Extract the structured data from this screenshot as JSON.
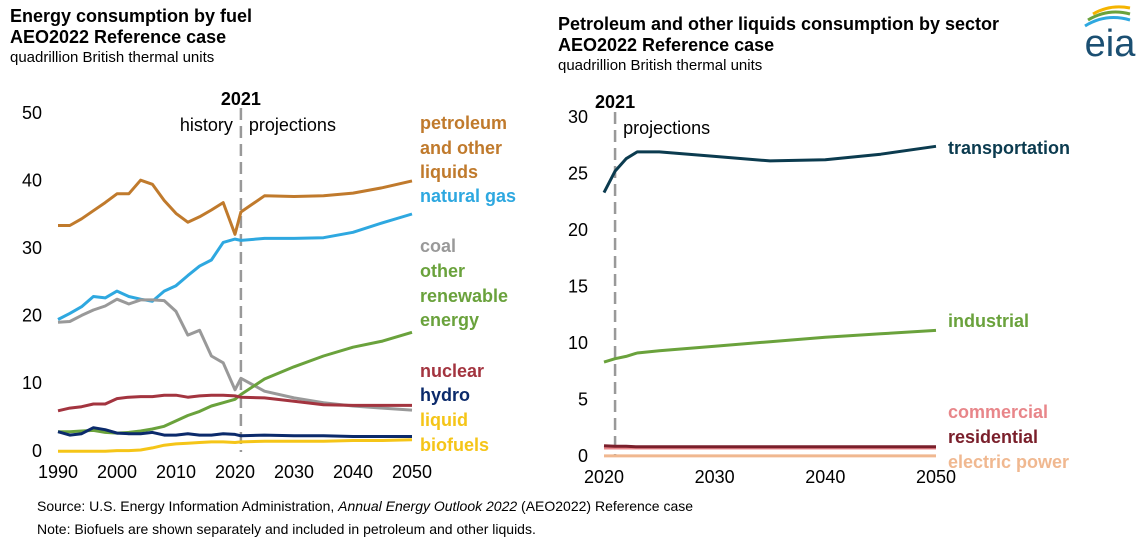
{
  "chart_data": [
    {
      "type": "line",
      "title": "Energy consumption by fuel",
      "subtitle": "AEO2022 Reference case",
      "units": "quadrillion British thermal units",
      "marker_year": 2021,
      "history_label": "history",
      "projections_label": "projections",
      "x": [
        1990,
        1992,
        1994,
        1996,
        1998,
        2000,
        2002,
        2004,
        2006,
        2008,
        2010,
        2012,
        2014,
        2016,
        2018,
        2020,
        2021,
        2025,
        2030,
        2035,
        2040,
        2045,
        2050
      ],
      "xlim": [
        1990,
        2050
      ],
      "xticks": [
        1990,
        2000,
        2010,
        2020,
        2030,
        2040,
        2050
      ],
      "ylim": [
        0,
        50
      ],
      "yticks": [
        0,
        10,
        20,
        30,
        40,
        50
      ],
      "grid": false,
      "series": [
        {
          "name": "petroleum and other liquids",
          "color": "#c07a2c",
          "values": [
            33.5,
            33.5,
            34.5,
            35.7,
            36.9,
            38.2,
            38.2,
            40.2,
            39.6,
            37.2,
            35.3,
            34.0,
            34.8,
            35.8,
            36.9,
            32.2,
            35.5,
            37.9,
            37.8,
            37.9,
            38.3,
            39.1,
            40.1
          ]
        },
        {
          "name": "natural gas",
          "color": "#2ea8e0",
          "values": [
            19.6,
            20.5,
            21.5,
            23.0,
            22.8,
            23.8,
            23.0,
            22.6,
            22.3,
            23.8,
            24.6,
            26.1,
            27.5,
            28.4,
            31.0,
            31.5,
            31.3,
            31.6,
            31.6,
            31.7,
            32.5,
            33.9,
            35.2
          ]
        },
        {
          "name": "coal",
          "color": "#999999",
          "values": [
            19.2,
            19.3,
            20.2,
            21.0,
            21.6,
            22.6,
            21.9,
            22.5,
            22.5,
            22.4,
            20.8,
            17.3,
            18.0,
            14.2,
            13.2,
            9.2,
            10.9,
            9.0,
            8.0,
            7.3,
            6.8,
            6.5,
            6.2
          ]
        },
        {
          "name": "other renewable energy",
          "color": "#6aa23c",
          "values": [
            3.0,
            3.0,
            3.1,
            3.2,
            2.9,
            2.8,
            2.9,
            3.1,
            3.4,
            3.8,
            4.6,
            5.4,
            6.0,
            6.8,
            7.3,
            7.8,
            8.5,
            10.8,
            12.6,
            14.2,
            15.5,
            16.4,
            17.7
          ]
        },
        {
          "name": "nuclear",
          "color": "#a3343f",
          "values": [
            6.1,
            6.5,
            6.7,
            7.1,
            7.1,
            7.9,
            8.1,
            8.2,
            8.2,
            8.4,
            8.4,
            8.1,
            8.3,
            8.4,
            8.4,
            8.3,
            8.1,
            8.0,
            7.5,
            7.0,
            6.9,
            6.9,
            6.9
          ]
        },
        {
          "name": "hydro",
          "color": "#0b2a6b",
          "values": [
            3.0,
            2.5,
            2.7,
            3.6,
            3.3,
            2.8,
            2.7,
            2.7,
            2.9,
            2.5,
            2.5,
            2.7,
            2.5,
            2.5,
            2.7,
            2.6,
            2.4,
            2.5,
            2.4,
            2.4,
            2.3,
            2.3,
            2.3
          ]
        },
        {
          "name": "liquid biofuels",
          "color": "#f5c518",
          "values": [
            0.1,
            0.1,
            0.1,
            0.1,
            0.1,
            0.2,
            0.2,
            0.3,
            0.6,
            1.0,
            1.2,
            1.3,
            1.4,
            1.5,
            1.5,
            1.4,
            1.5,
            1.6,
            1.6,
            1.6,
            1.7,
            1.7,
            1.8
          ]
        }
      ]
    },
    {
      "type": "line",
      "title": "Petroleum and other liquids consumption by sector",
      "subtitle": "AEO2022 Reference case",
      "units": "quadrillion British thermal units",
      "marker_year": 2021,
      "projections_label": "projections",
      "x": [
        2020,
        2021,
        2022,
        2023,
        2025,
        2030,
        2035,
        2040,
        2045,
        2050
      ],
      "xlim": [
        2020,
        2050
      ],
      "xticks": [
        2020,
        2030,
        2040,
        2050
      ],
      "ylim": [
        0,
        30
      ],
      "yticks": [
        0,
        5,
        10,
        15,
        20,
        25,
        30
      ],
      "grid": false,
      "series": [
        {
          "name": "transportation",
          "color": "#0b3b4f",
          "values": [
            23.4,
            25.3,
            26.4,
            27.0,
            27.0,
            26.6,
            26.2,
            26.3,
            26.8,
            27.5
          ]
        },
        {
          "name": "industrial",
          "color": "#6aa23c",
          "values": [
            8.4,
            8.7,
            8.9,
            9.2,
            9.4,
            9.8,
            10.2,
            10.6,
            10.9,
            11.2
          ]
        },
        {
          "name": "commercial",
          "color": "#e8868a",
          "values": [
            0.8,
            0.8,
            0.8,
            0.8,
            0.8,
            0.8,
            0.8,
            0.8,
            0.8,
            0.8
          ]
        },
        {
          "name": "residential",
          "color": "#7a1f2b",
          "values": [
            1.0,
            0.95,
            0.95,
            0.9,
            0.9,
            0.9,
            0.9,
            0.9,
            0.9,
            0.9
          ]
        },
        {
          "name": "electric power",
          "color": "#f0b890",
          "values": [
            0.1,
            0.1,
            0.1,
            0.1,
            0.1,
            0.1,
            0.1,
            0.1,
            0.1,
            0.1
          ]
        }
      ]
    }
  ],
  "logo": "eia",
  "footer": {
    "source": [
      "Source: U.S. Energy Information Administration, ",
      "Annual Energy Outlook 2022",
      " (AEO2022) Reference case"
    ],
    "note": "Note: Biofuels are shown separately and included in petroleum and other liquids."
  }
}
